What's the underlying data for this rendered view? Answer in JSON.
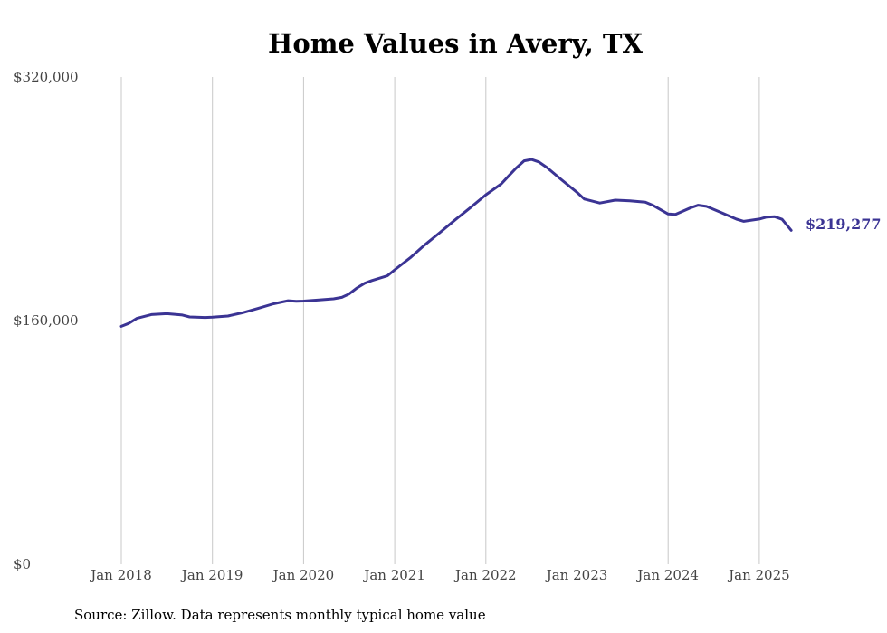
{
  "chart_data": {
    "type": "line",
    "title": "Home Values in Avery, TX",
    "xlabel": "",
    "ylabel": "",
    "ylim": [
      0,
      320000
    ],
    "y_ticks": [
      "$0",
      "$160,000",
      "$320,000"
    ],
    "y_tick_values": [
      0,
      160000,
      320000
    ],
    "x_ticks": [
      "Jan 2018",
      "Jan 2019",
      "Jan 2020",
      "Jan 2021",
      "Jan 2022",
      "Jan 2023",
      "Jan 2024",
      "Jan 2025"
    ],
    "x_tick_values": [
      2018,
      2019,
      2020,
      2021,
      2022,
      2023,
      2024,
      2025
    ],
    "grid": "vertical",
    "line_color": "#3b3494",
    "series": [
      {
        "x": [
          2018.0,
          2018.08,
          2018.17,
          2018.33,
          2018.5,
          2018.67,
          2018.75,
          2018.92,
          2019.0,
          2019.17,
          2019.33,
          2019.5,
          2019.67,
          2019.83,
          2019.92,
          2020.0,
          2020.17,
          2020.33,
          2020.42,
          2020.5,
          2020.58,
          2020.67,
          2020.75,
          2020.92,
          2021.0,
          2021.17,
          2021.33,
          2021.5,
          2021.67,
          2021.83,
          2022.0,
          2022.17,
          2022.25,
          2022.33,
          2022.42,
          2022.5,
          2022.58,
          2022.67,
          2022.83,
          2023.0,
          2023.08,
          2023.25,
          2023.42,
          2023.58,
          2023.75,
          2023.83,
          2024.0,
          2024.08,
          2024.25,
          2024.33,
          2024.42,
          2024.58,
          2024.75,
          2024.83,
          2025.0,
          2025.08,
          2025.17,
          2025.25,
          2025.35
        ],
        "values": [
          156200,
          158100,
          161400,
          163900,
          164500,
          163600,
          162400,
          162000,
          162200,
          163000,
          165100,
          168000,
          171000,
          173000,
          172600,
          172800,
          173500,
          174300,
          175200,
          177500,
          181200,
          184500,
          186300,
          189400,
          193300,
          201200,
          209700,
          218000,
          226500,
          234200,
          242600,
          249800,
          255000,
          260000,
          264900,
          265800,
          264200,
          260500,
          252500,
          244200,
          239800,
          237200,
          239100,
          238700,
          237800,
          235800,
          230000,
          229700,
          234200,
          235800,
          235000,
          231000,
          226600,
          225200,
          226700,
          228000,
          228200,
          226500,
          219277
        ]
      }
    ],
    "end_label": "$219,277",
    "source": "Source: Zillow. Data represents monthly typical home value"
  }
}
